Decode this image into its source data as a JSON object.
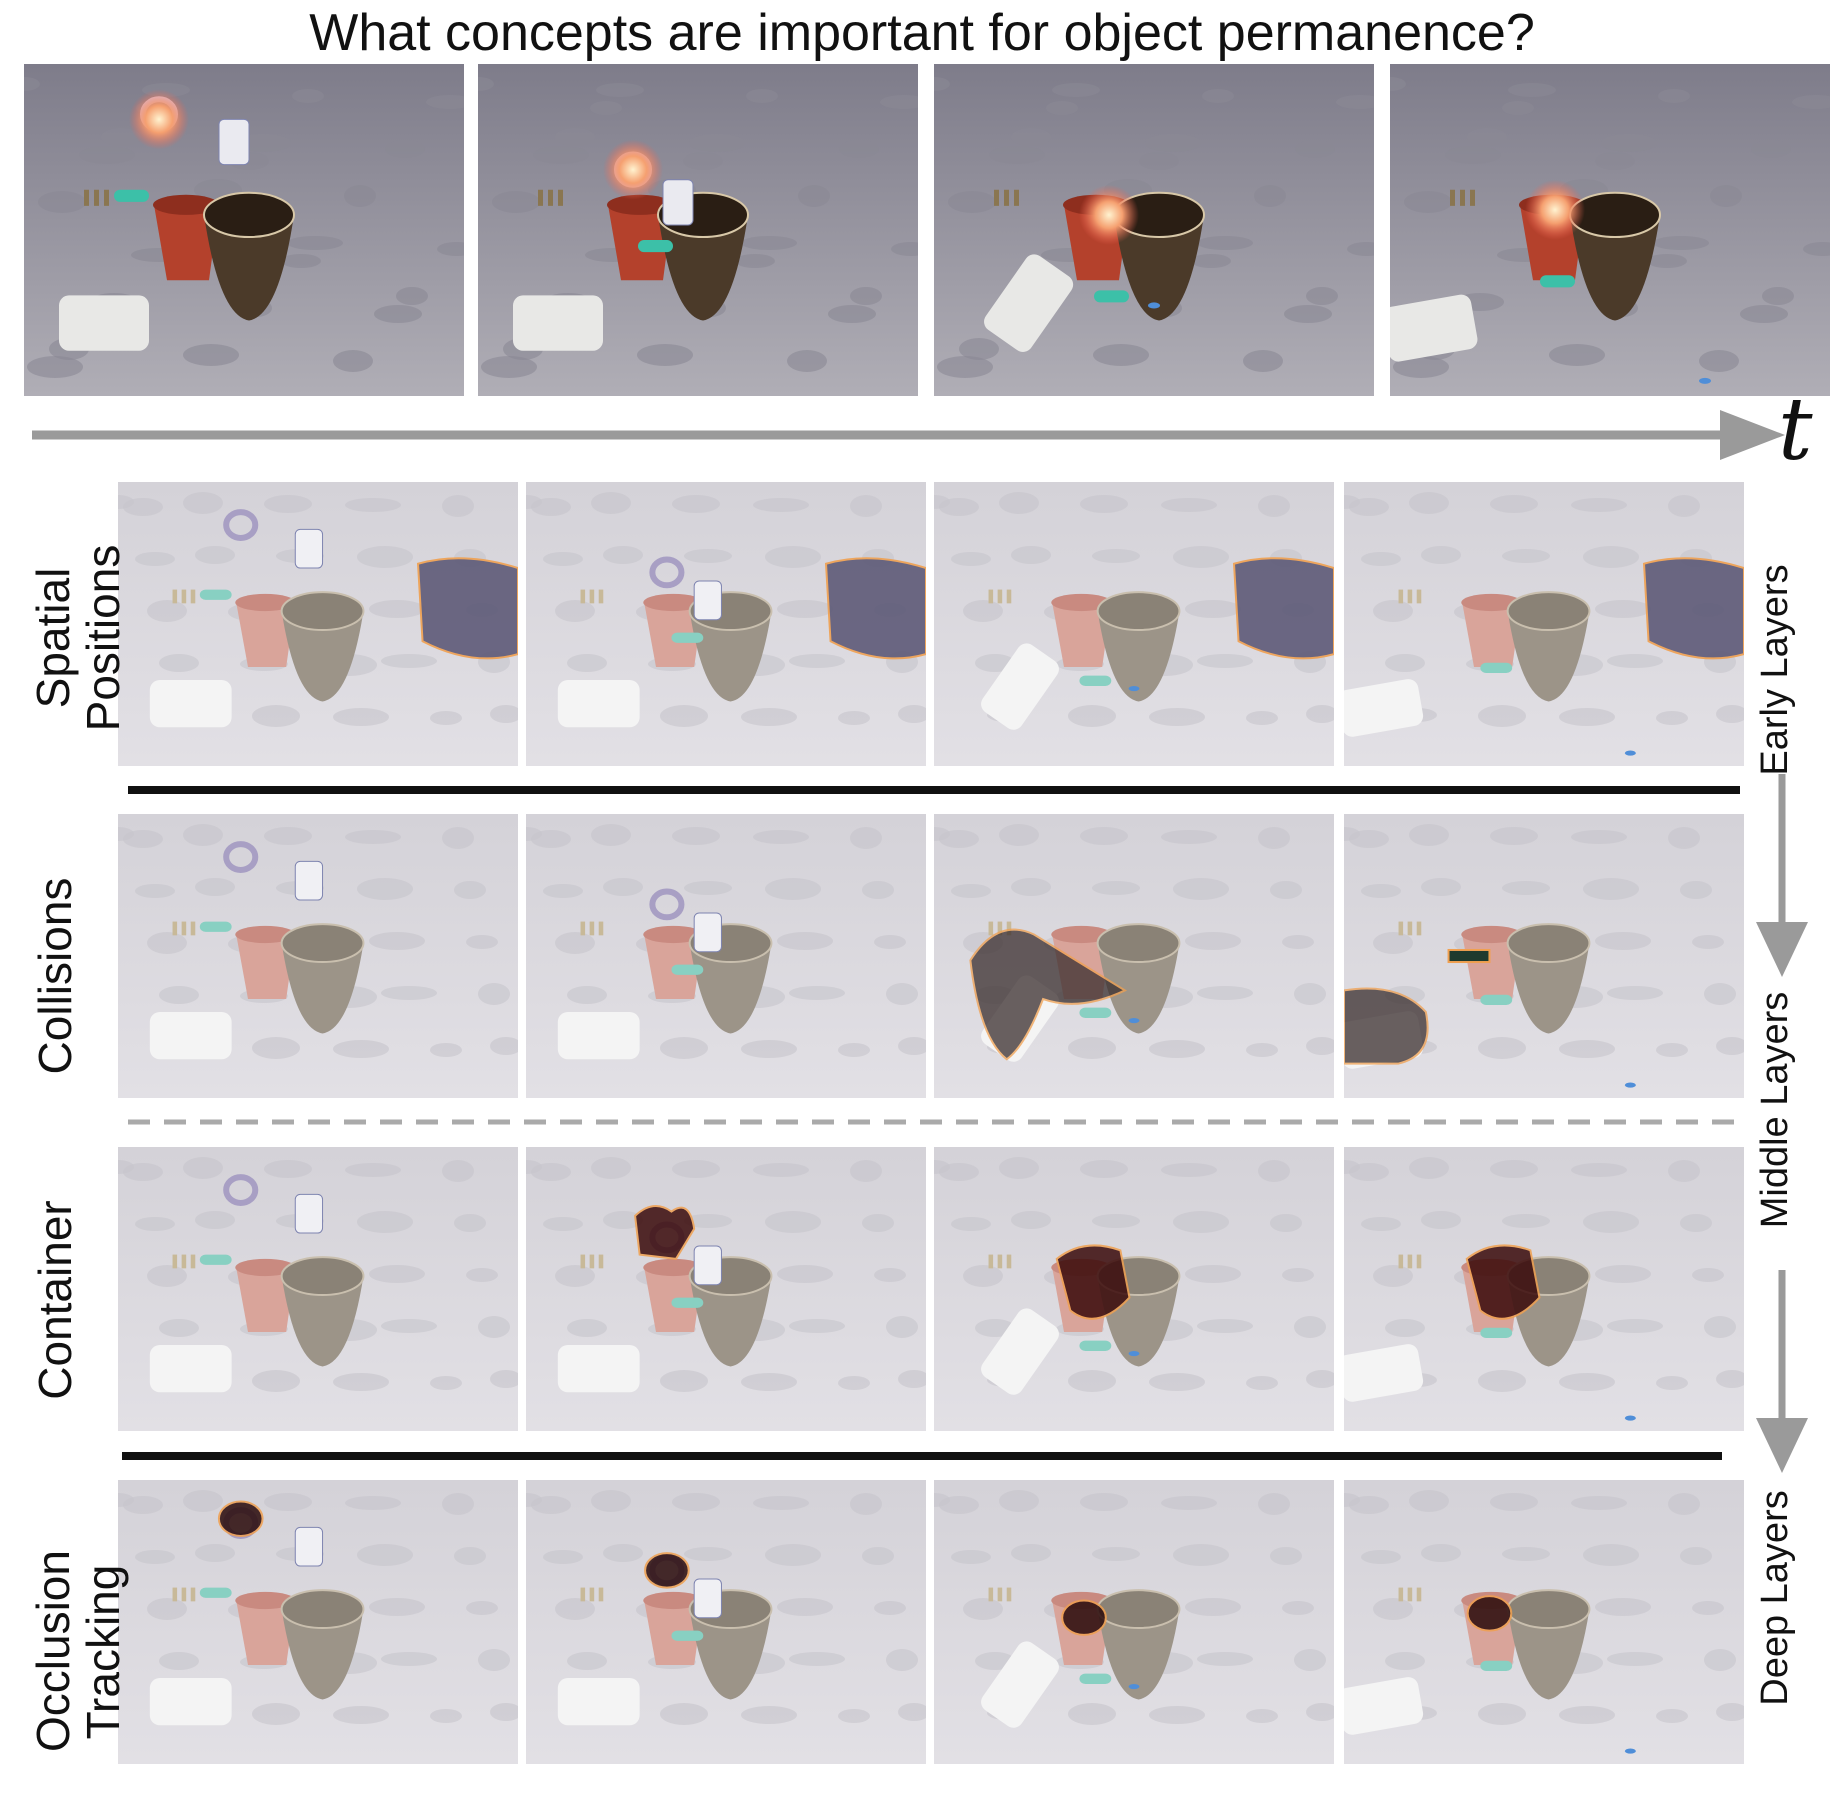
{
  "title": "What concepts are important for object permanence?",
  "time_axis_label": "t",
  "rows": [
    {
      "label": "Spatial Positions",
      "concept": "spatial"
    },
    {
      "label": "Collisions",
      "concept": "collision"
    },
    {
      "label": "Container",
      "concept": "container"
    },
    {
      "label": "Occlusion Tracking",
      "concept": "occlusion"
    }
  ],
  "layers": {
    "early": "Early Layers",
    "middle": "Middle Layers",
    "deep": "Deep Layers"
  },
  "colors": {
    "floor": "#9a98a3",
    "floor_faded": "#cfcdd3",
    "highlight_outline": "#f0a050",
    "arrow": "#9a9a9a",
    "separator": "#111111"
  }
}
